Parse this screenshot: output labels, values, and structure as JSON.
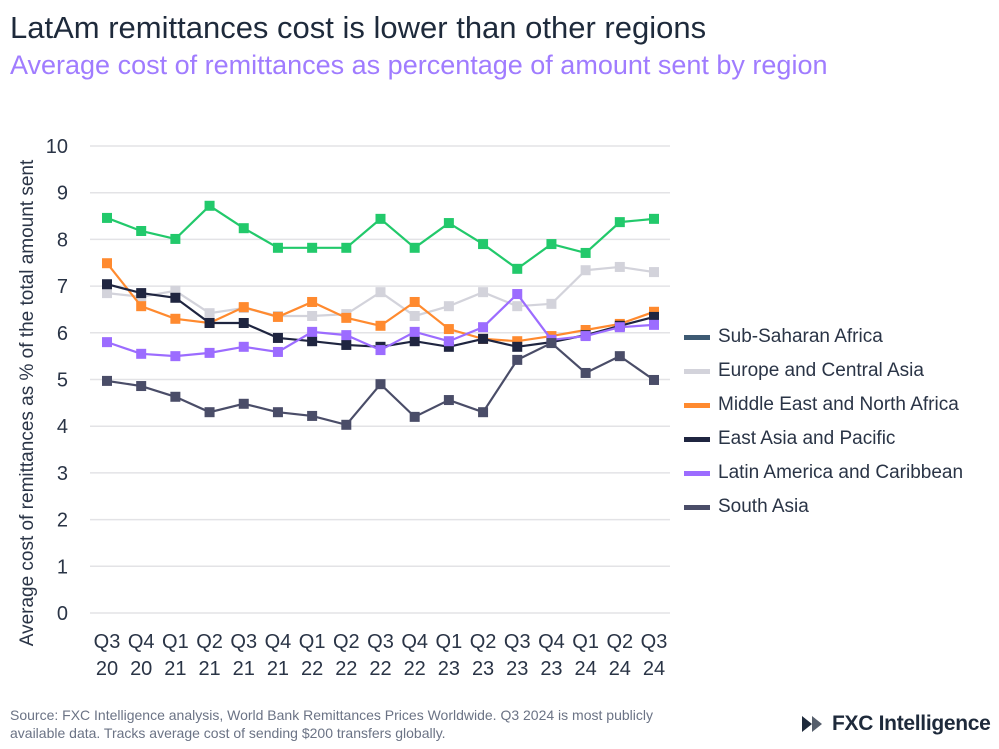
{
  "title": "LatAm remittances cost is lower than other regions",
  "subtitle": "Average cost of remittances as percentage of amount sent by region",
  "source": "Source: FXC Intelligence analysis, World Bank Remittances Prices Worldwide. Q3 2024 is most publicly available data. Tracks average cost of sending $200 transfers globally.",
  "logo": "FXC Intelligence",
  "chart_data": {
    "type": "line",
    "title": "LatAm remittances cost is lower than other regions",
    "subtitle": "Average cost of remittances as percentage of amount sent by region",
    "xlabel": "",
    "ylabel": "Average cost of remittances as % of the total amount sent",
    "ylim": [
      0,
      10
    ],
    "yticks": [
      "0",
      "1",
      "2",
      "3",
      "4",
      "5",
      "6",
      "7",
      "8",
      "9",
      "10"
    ],
    "grid": true,
    "legend_placement": "right",
    "categories": [
      [
        "Q3",
        "20"
      ],
      [
        "Q4",
        "20"
      ],
      [
        "Q1",
        "21"
      ],
      [
        "Q2",
        "21"
      ],
      [
        "Q3",
        "21"
      ],
      [
        "Q4",
        "21"
      ],
      [
        "Q1",
        "22"
      ],
      [
        "Q2",
        "22"
      ],
      [
        "Q3",
        "22"
      ],
      [
        "Q4",
        "22"
      ],
      [
        "Q1",
        "23"
      ],
      [
        "Q2",
        "23"
      ],
      [
        "Q3",
        "23"
      ],
      [
        "Q4",
        "23"
      ],
      [
        "Q1",
        "24"
      ],
      [
        "Q2",
        "24"
      ],
      [
        "Q3",
        "24"
      ]
    ],
    "series": [
      {
        "name": "Sub-Saharan Africa",
        "color": "#22c96b",
        "legend_color": "#3d5a73",
        "values": [
          8.46,
          8.18,
          8.01,
          8.72,
          8.24,
          7.82,
          7.82,
          7.82,
          8.44,
          7.82,
          8.35,
          7.9,
          7.37,
          7.9,
          7.71,
          8.37,
          8.44
        ]
      },
      {
        "name": "Europe and Central Asia",
        "color": "#d3d3db",
        "legend_color": "#d3d3db",
        "values": [
          6.85,
          6.77,
          6.9,
          6.42,
          6.53,
          6.36,
          6.36,
          6.4,
          6.87,
          6.36,
          6.57,
          6.87,
          6.57,
          6.62,
          7.34,
          7.41,
          7.3
        ]
      },
      {
        "name": "Middle East and North Africa",
        "color": "#ff8a2f",
        "legend_color": "#ff8a2f",
        "values": [
          7.49,
          6.57,
          6.3,
          6.21,
          6.55,
          6.34,
          6.66,
          6.32,
          6.15,
          6.66,
          6.08,
          5.87,
          5.82,
          5.93,
          6.06,
          6.19,
          6.45
        ]
      },
      {
        "name": "East Asia and Pacific",
        "color": "#1f2540",
        "legend_color": "#1f2540",
        "values": [
          7.04,
          6.85,
          6.75,
          6.21,
          6.21,
          5.89,
          5.82,
          5.74,
          5.7,
          5.82,
          5.7,
          5.87,
          5.7,
          5.8,
          5.95,
          6.15,
          6.34
        ]
      },
      {
        "name": "Latin America and Caribbean",
        "color": "#9c6cff",
        "legend_color": "#9c6cff",
        "values": [
          5.8,
          5.55,
          5.5,
          5.57,
          5.7,
          5.59,
          6.02,
          5.95,
          5.63,
          6.02,
          5.82,
          6.12,
          6.83,
          5.85,
          5.93,
          6.12,
          6.17
        ]
      },
      {
        "name": "South Asia",
        "color": "#4a4d68",
        "legend_color": "#4a4d68",
        "values": [
          4.97,
          4.86,
          4.63,
          4.3,
          4.48,
          4.3,
          4.22,
          4.03,
          4.9,
          4.2,
          4.56,
          4.3,
          5.42,
          5.78,
          5.14,
          5.5,
          4.99
        ]
      }
    ]
  }
}
